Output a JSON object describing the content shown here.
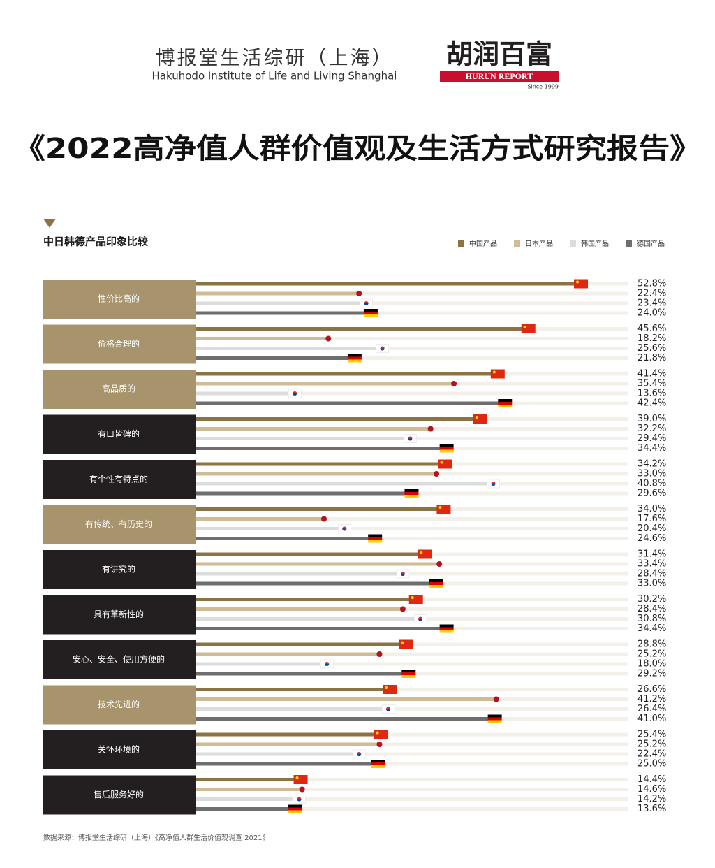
{
  "header": {
    "org_cn": "博报堂生活综研（上海）",
    "org_en": "Hakuhodo Institute of Life and Living Shanghai",
    "brand_cn": "胡润百富",
    "brand_en": "HURUN REPORT",
    "since": "Since 1999",
    "report_title": "《2022高净值人群价值观及生活方式研究报告》"
  },
  "chart_data": {
    "type": "grouped-hbar",
    "title": "中日韩德产品印象比较",
    "categories": [
      "性价比高的",
      "价格合理的",
      "高品质的",
      "有口皆碑的",
      "有个性有特点的",
      "有传统、有历史的",
      "有讲究的",
      "具有革新性的",
      "安心、安全、使用方便的",
      "技术先进的",
      "关怀环境的",
      "售后服务好的"
    ],
    "category_colors": [
      "#a8946c",
      "#a8946c",
      "#a8946c",
      "#231f20",
      "#231f20",
      "#a8946c",
      "#231f20",
      "#231f20",
      "#231f20",
      "#a8946c",
      "#231f20",
      "#231f20"
    ],
    "series": [
      {
        "name": "中国产品",
        "color": "#8c7346",
        "values": [
          52.8,
          45.6,
          41.4,
          39.0,
          34.2,
          34.0,
          31.4,
          30.2,
          28.8,
          26.6,
          25.4,
          14.4
        ],
        "value_labels": [
          "52.8%",
          "45.6%",
          "41.4%",
          "39.0%",
          "34.2%",
          "34.0%",
          "31.4%",
          "30.2%",
          "28.8%",
          "26.6%",
          "25.4%",
          "14.4%"
        ]
      },
      {
        "name": "日本产品",
        "color": "#cfbb95",
        "values": [
          22.4,
          18.2,
          35.4,
          32.2,
          33.0,
          17.6,
          33.4,
          28.4,
          25.2,
          41.2,
          25.2,
          14.6
        ],
        "value_labels": [
          "22.4%",
          "18.2%",
          "35.4%",
          "32.2%",
          "33.0%",
          "17.6%",
          "33.4%",
          "28.4%",
          "25.2%",
          "41.2%",
          "25.2%",
          "14.6%"
        ]
      },
      {
        "name": "韩国产品",
        "color": "#dcdcdc",
        "values": [
          23.4,
          25.6,
          13.6,
          29.4,
          40.8,
          20.4,
          28.4,
          30.8,
          18.0,
          26.4,
          22.4,
          14.2
        ],
        "value_labels": [
          "23.4%",
          "25.6%",
          "13.6%",
          "29.4%",
          "40.8%",
          "20.4%",
          "28.4%",
          "30.8%",
          "18.0%",
          "26.4%",
          "22.4%",
          "14.2%"
        ]
      },
      {
        "name": "德国产品",
        "color": "#6e6e6e",
        "values": [
          24.0,
          21.8,
          42.4,
          34.4,
          29.6,
          24.6,
          33.0,
          34.4,
          29.2,
          41.0,
          25.0,
          13.6
        ],
        "value_labels": [
          "24.0%",
          "21.8%",
          "42.4%",
          "34.4%",
          "29.6%",
          "24.6%",
          "33.0%",
          "34.4%",
          "29.2%",
          "41.0%",
          "25.0%",
          "13.6%"
        ]
      }
    ],
    "source": "数据来源：博报堂生活综研（上海）《高净值人群生活价值观调查 2021》"
  }
}
